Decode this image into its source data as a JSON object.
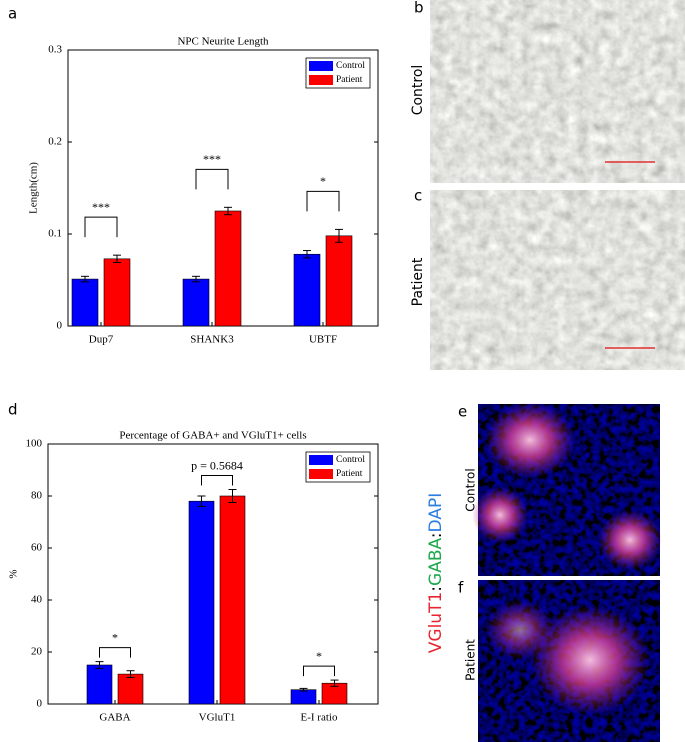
{
  "chart_data": [
    {
      "type": "bar",
      "title": "NPC Neurite Length",
      "ylabel": "Length(cm)",
      "categories": [
        "Dup7",
        "SHANK3",
        "UBTF"
      ],
      "series": [
        {
          "name": "Control",
          "color": "#0000ff",
          "values": [
            0.051,
            0.051,
            0.078
          ],
          "errors": [
            0.003,
            0.003,
            0.004
          ]
        },
        {
          "name": "Patient",
          "color": "#ff0000",
          "values": [
            0.073,
            0.125,
            0.098
          ],
          "errors": [
            0.004,
            0.004,
            0.007
          ]
        }
      ],
      "annotations": [
        "***",
        "***",
        "*"
      ],
      "ylim": [
        0,
        0.3
      ],
      "yticks": [
        0,
        0.1,
        0.2,
        0.3
      ],
      "legend": "upper right"
    },
    {
      "type": "bar",
      "title": "Percentage of GABA+ and VGluT1+ cells",
      "ylabel": "%",
      "categories": [
        "GABA",
        "VGluT1",
        "E-I ratio"
      ],
      "series": [
        {
          "name": "Control",
          "color": "#0000ff",
          "values": [
            15,
            78,
            5.5
          ],
          "errors": [
            1.3,
            2,
            0.5
          ]
        },
        {
          "name": "Patient",
          "color": "#ff0000",
          "values": [
            11.5,
            80,
            8
          ],
          "errors": [
            1.3,
            2.5,
            1.2
          ]
        }
      ],
      "annotations": [
        "*",
        "p = 0.5684",
        "*"
      ],
      "ylim": [
        0,
        100
      ],
      "yticks": [
        0,
        20,
        40,
        60,
        80,
        100
      ],
      "legend": "upper right"
    }
  ],
  "panel_letters": [
    "a",
    "b",
    "c",
    "d",
    "e",
    "f"
  ],
  "image_labels": [
    "Control",
    "Patient",
    "Control",
    "Patient"
  ],
  "stain_label": [
    {
      "text": "VGluT1",
      "color": "#e8232e"
    },
    {
      "text": ":",
      "color": "#000000"
    },
    {
      "text": "GABA",
      "color": "#1aa84a"
    },
    {
      "text": ":",
      "color": "#000000"
    },
    {
      "text": "DAPI",
      "color": "#2a7de1"
    }
  ]
}
